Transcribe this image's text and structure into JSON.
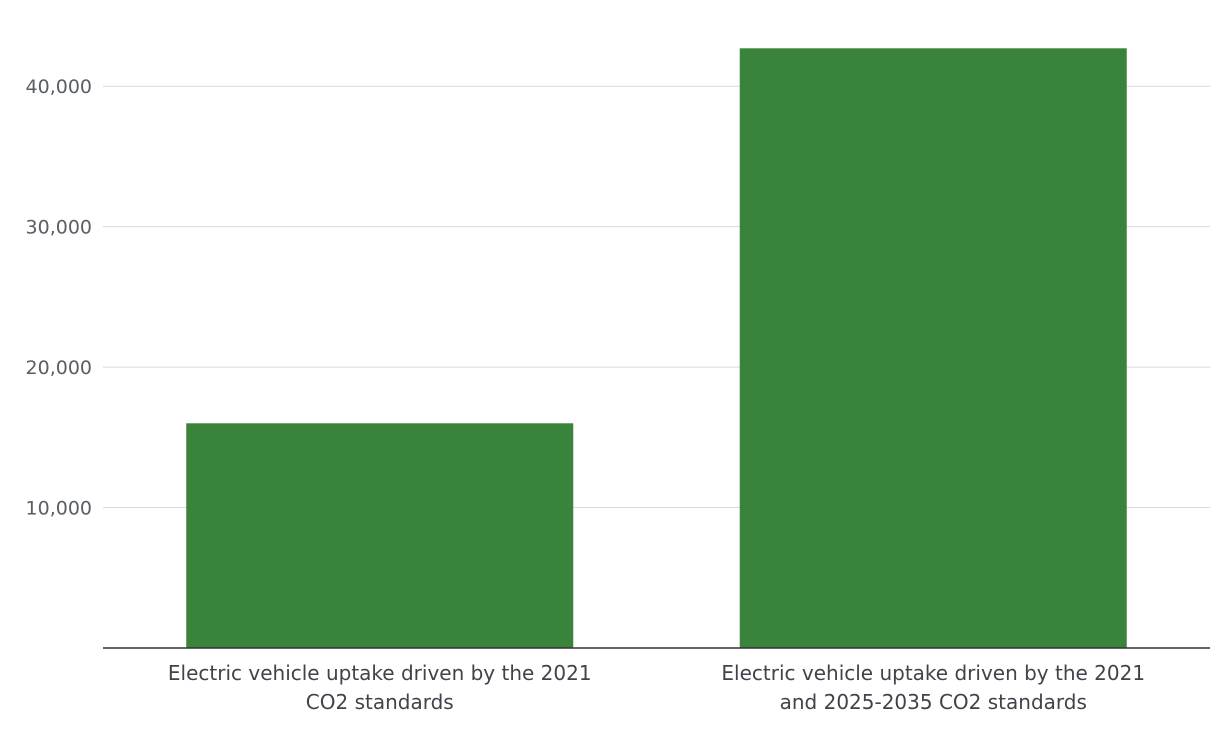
{
  "chart_data": {
    "type": "bar",
    "title": "",
    "xlabel": "",
    "ylabel": "",
    "categories": [
      [
        "Electric vehicle uptake driven by the 2021",
        "CO2 standards"
      ],
      [
        "Electric vehicle uptake driven by the 2021",
        "and 2025-2035 CO2 standards"
      ]
    ],
    "values": [
      16000,
      42700
    ],
    "ylim": [
      0,
      45000
    ],
    "yticks": [
      10000,
      20000,
      30000,
      40000
    ],
    "ytick_labels": [
      "10,000",
      "20,000",
      "30,000",
      "40,000"
    ],
    "grid": true,
    "bar_color": "#3a833a"
  }
}
